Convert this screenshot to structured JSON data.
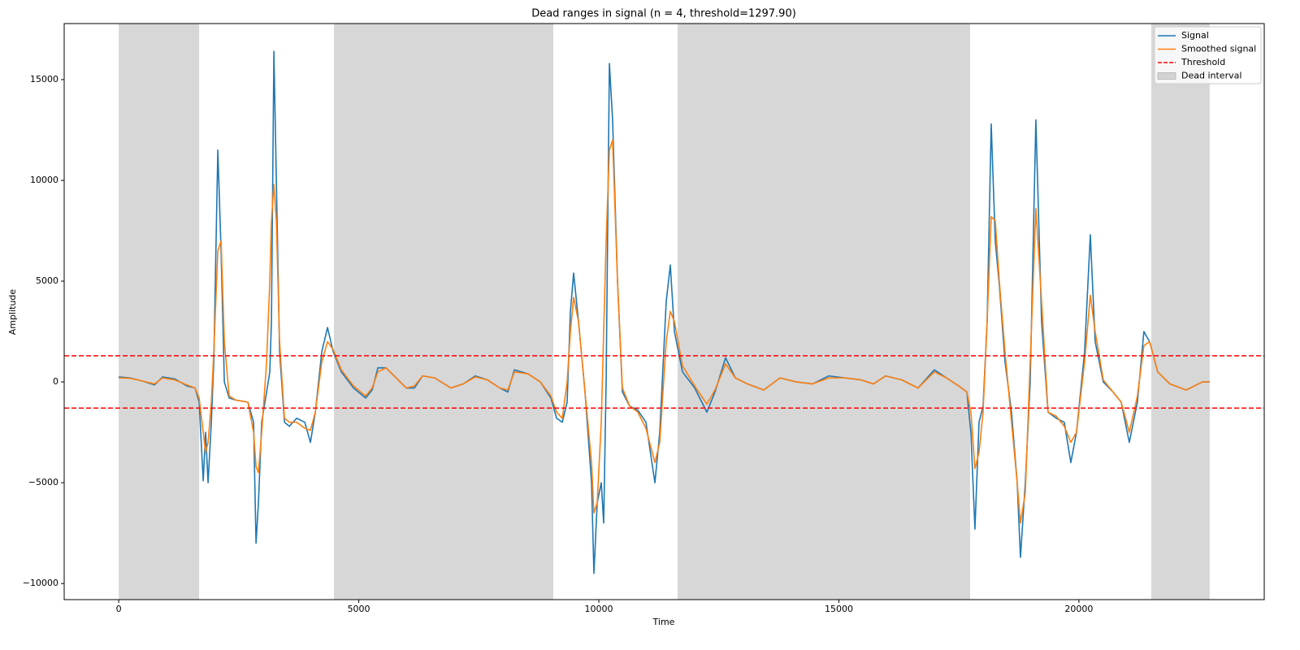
{
  "chart_data": {
    "type": "line",
    "title": "Dead ranges in signal (n = 4, threshold=1297.90)",
    "x_label": "Time",
    "y_label": "Amplitude",
    "xlim": [
      -1136,
      23860
    ],
    "ylim": [
      -10800,
      17780
    ],
    "xticks": [
      0,
      5000,
      10000,
      15000,
      20000
    ],
    "yticks": [
      {
        "value": -10000,
        "label": "−10000"
      },
      {
        "value": -5000,
        "label": "−5000"
      },
      0,
      5000,
      10000,
      15000
    ],
    "legend": "upper right",
    "x": [
      0,
      237,
      490,
      745,
      914,
      1168,
      1421,
      1590,
      1675,
      1760,
      1810,
      1861,
      1929,
      1980,
      2064,
      2132,
      2200,
      2301,
      2437,
      2690,
      2809,
      2860,
      2910,
      2978,
      3080,
      3147,
      3181,
      3232,
      3283,
      3350,
      3452,
      3553,
      3706,
      3875,
      3993,
      4095,
      4230,
      4349,
      4467,
      4636,
      4890,
      5144,
      5279,
      5398,
      5567,
      5736,
      5990,
      6159,
      6328,
      6582,
      6920,
      7174,
      7428,
      7682,
      7936,
      8105,
      8240,
      8528,
      8782,
      9002,
      9120,
      9239,
      9340,
      9408,
      9475,
      9577,
      9712,
      9848,
      9898,
      9966,
      10051,
      10101,
      10152,
      10220,
      10287,
      10389,
      10491,
      10643,
      10812,
      10981,
      11168,
      11269,
      11404,
      11489,
      11574,
      11743,
      11997,
      12250,
      12419,
      12640,
      12843,
      13097,
      13435,
      13773,
      14112,
      14450,
      14788,
      15127,
      15465,
      15719,
      15973,
      16311,
      16650,
      16988,
      17242,
      17496,
      17665,
      17750,
      17834,
      17919,
      18003,
      18088,
      18173,
      18257,
      18342,
      18460,
      18596,
      18714,
      18782,
      18883,
      18985,
      19103,
      19222,
      19357,
      19526,
      19695,
      19831,
      19949,
      20118,
      20237,
      20338,
      20507,
      20710,
      20880,
      21049,
      21218,
      21353,
      21472,
      21641,
      21895,
      22234,
      22572,
      22724
    ],
    "series": [
      {
        "name": "Signal",
        "color": "#1f77b4",
        "values": [
          250,
          200,
          50,
          -150,
          250,
          150,
          -200,
          -300,
          -1000,
          -4900,
          -2500,
          -5000,
          -2000,
          1000,
          11500,
          6500,
          0,
          -800,
          -900,
          -1000,
          -2000,
          -8000,
          -6000,
          -2000,
          -500,
          500,
          3000,
          16400,
          10000,
          1500,
          -2000,
          -2200,
          -1800,
          -2000,
          -3000,
          -1500,
          1500,
          2700,
          1500,
          500,
          -300,
          -800,
          -400,
          700,
          700,
          300,
          -300,
          -300,
          300,
          200,
          -300,
          -100,
          300,
          100,
          -300,
          -500,
          600,
          400,
          0,
          -800,
          -1800,
          -2000,
          -1000,
          3500,
          5400,
          3000,
          -500,
          -5000,
          -9500,
          -6000,
          -5000,
          -7000,
          0,
          15800,
          13000,
          5000,
          -500,
          -1200,
          -1400,
          -2000,
          -5000,
          -2500,
          4000,
          5800,
          2500,
          500,
          -300,
          -1500,
          -500,
          1200,
          200,
          -100,
          -400,
          200,
          0,
          -100,
          300,
          200,
          100,
          -100,
          300,
          100,
          -300,
          600,
          200,
          -200,
          -500,
          -2500,
          -7300,
          -2000,
          -1200,
          3000,
          12800,
          7000,
          4800,
          1000,
          -1500,
          -5000,
          -8700,
          -5000,
          0,
          13000,
          3000,
          -1500,
          -1800,
          -2000,
          -4000,
          -2500,
          1500,
          7300,
          2000,
          0,
          -500,
          -1000,
          -3000,
          -1000,
          2500,
          2000,
          500,
          -100,
          -400,
          0,
          0
        ]
      },
      {
        "name": "Smoothed signal",
        "color": "#ff7f0e",
        "values": [
          200,
          180,
          50,
          -100,
          200,
          100,
          -150,
          -300,
          -800,
          -2500,
          -3500,
          -3000,
          -1000,
          1500,
          6500,
          7000,
          2000,
          -700,
          -900,
          -1000,
          -2500,
          -4200,
          -4500,
          -2500,
          1000,
          5000,
          8000,
          9800,
          8000,
          2000,
          -1800,
          -2000,
          -2000,
          -2300,
          -2400,
          -1500,
          1000,
          2000,
          1600,
          600,
          -200,
          -700,
          -300,
          500,
          700,
          300,
          -300,
          -200,
          300,
          200,
          -300,
          -100,
          250,
          100,
          -300,
          -400,
          500,
          400,
          0,
          -700,
          -1500,
          -1800,
          0,
          2500,
          4200,
          3000,
          -500,
          -4000,
          -6500,
          -6000,
          -2000,
          2500,
          7000,
          11500,
          12000,
          5000,
          -300,
          -1200,
          -1500,
          -2300,
          -4000,
          -3000,
          2000,
          3500,
          3000,
          800,
          -200,
          -1100,
          -400,
          900,
          200,
          -100,
          -400,
          200,
          0,
          -100,
          200,
          200,
          100,
          -100,
          300,
          100,
          -300,
          500,
          200,
          -200,
          -500,
          -1500,
          -4300,
          -3500,
          -1500,
          3000,
          8200,
          8000,
          5000,
          1500,
          -2000,
          -5000,
          -7000,
          -5500,
          1000,
          8600,
          4000,
          -1500,
          -1700,
          -2200,
          -3000,
          -2500,
          1000,
          4300,
          2500,
          100,
          -500,
          -1000,
          -2500,
          -700,
          1800,
          2000,
          500,
          -100,
          -400,
          0,
          0
        ]
      }
    ],
    "threshold": {
      "name": "Threshold",
      "color": "#ff0000",
      "values": [
        1297.9,
        -1297.9
      ]
    },
    "dead_interval": {
      "name": "Dead interval",
      "color": "#d3d3d3",
      "ranges": [
        [
          0,
          1675
        ],
        [
          4484,
          9052
        ],
        [
          11641,
          17733
        ],
        [
          21506,
          22724
        ]
      ]
    }
  }
}
